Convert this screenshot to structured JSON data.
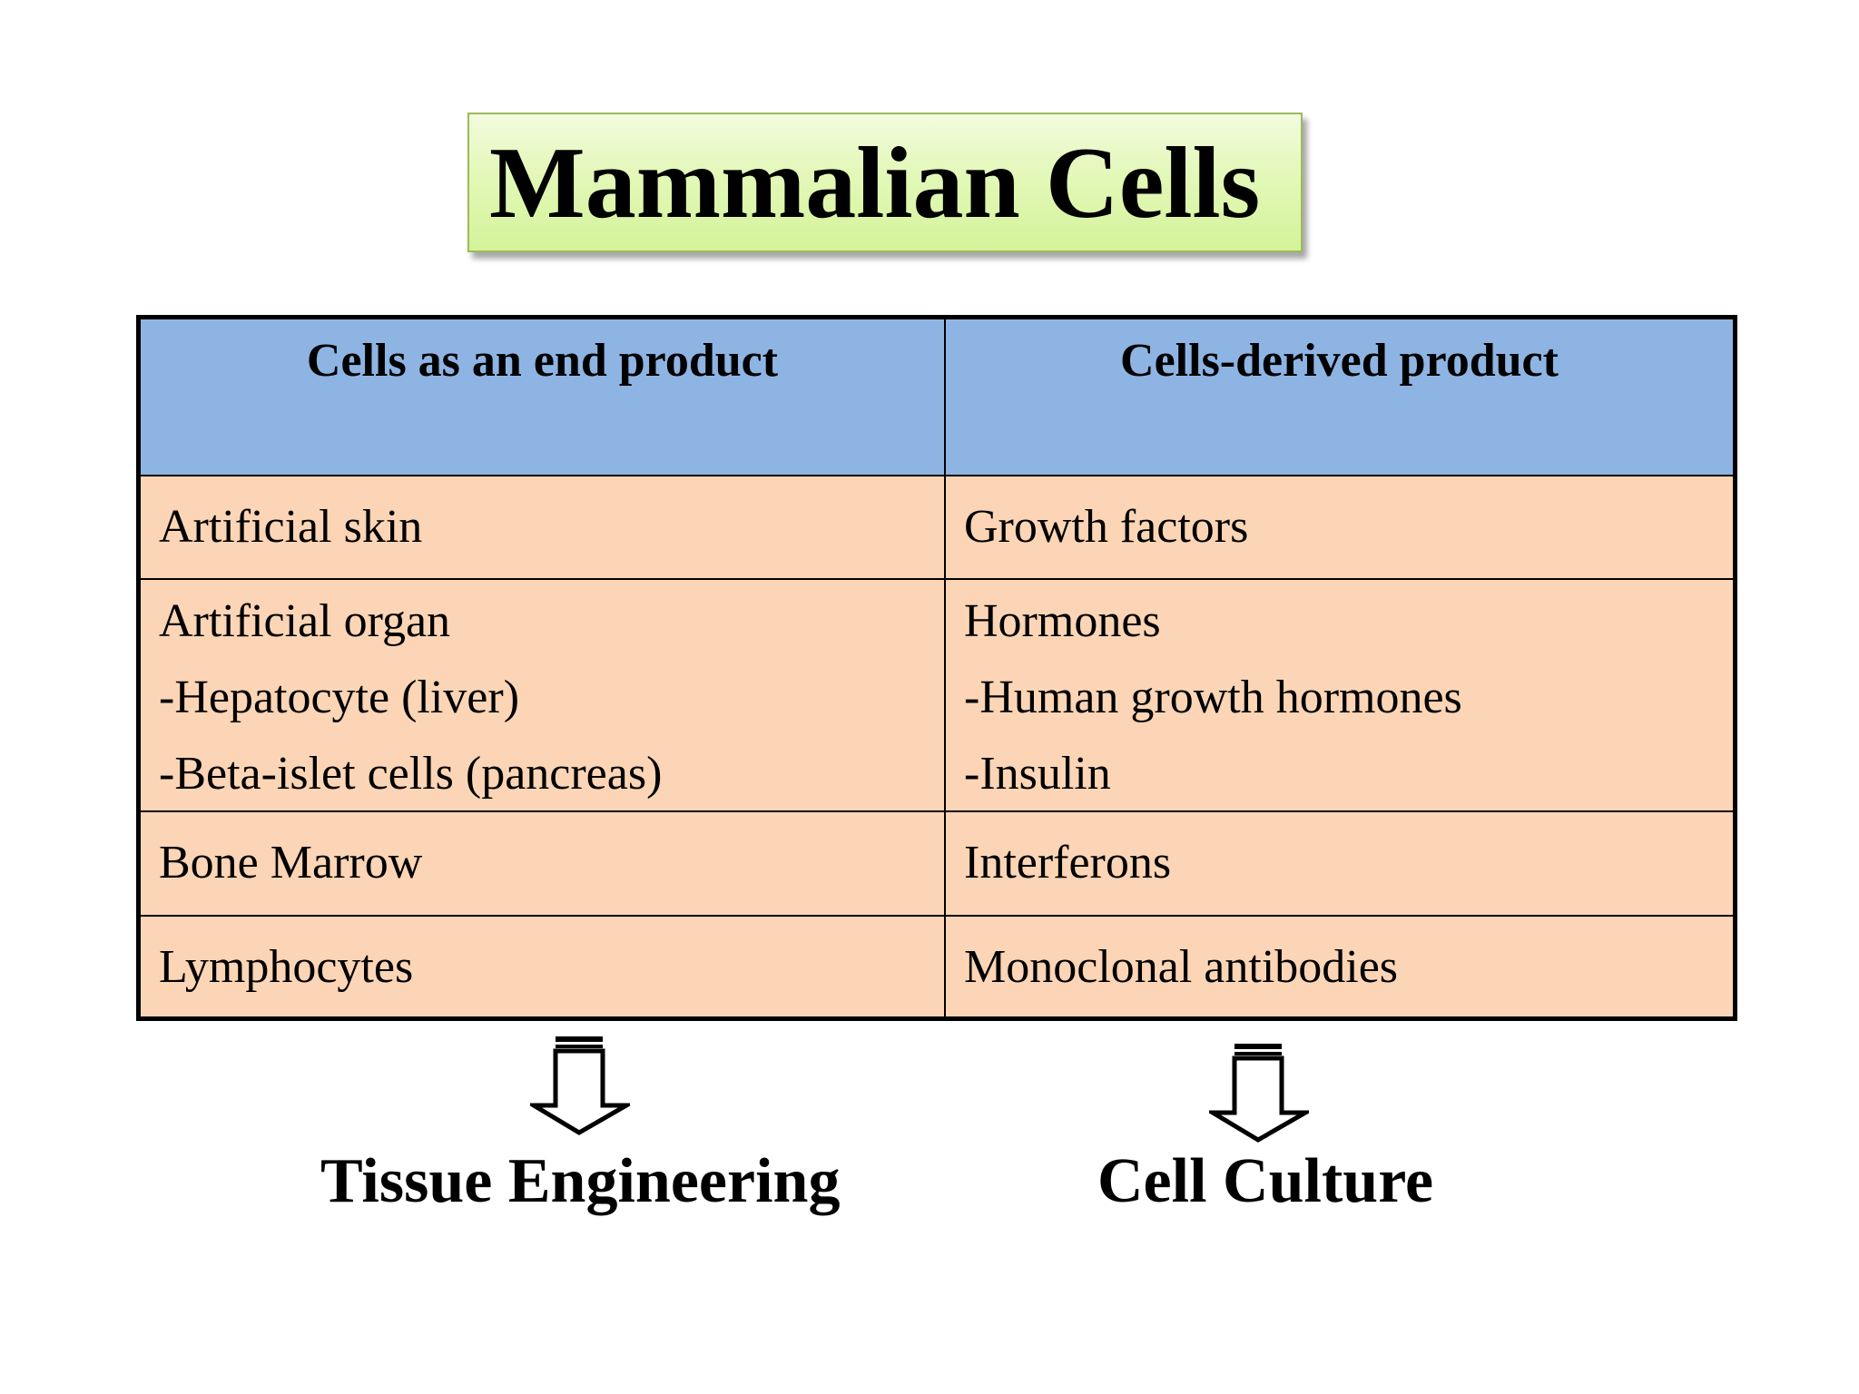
{
  "title": "Mammalian Cells",
  "table": {
    "headers": [
      "Cells as an end product",
      "Cells-derived product"
    ],
    "rows": [
      {
        "left": [
          "Artificial skin"
        ],
        "right": [
          "Growth factors"
        ]
      },
      {
        "left": [
          "Artificial organ",
          "-Hepatocyte (liver)",
          "-Beta-islet cells (pancreas)"
        ],
        "right": [
          "Hormones",
          "-Human growth hormones",
          "-Insulin"
        ]
      },
      {
        "left": [
          "Bone Marrow"
        ],
        "right": [
          "Interferons"
        ]
      },
      {
        "left": [
          "Lymphocytes"
        ],
        "right": [
          "Monoclonal antibodies"
        ]
      }
    ]
  },
  "footer": {
    "left_label": "Tissue Engineering",
    "right_label": "Cell Culture"
  },
  "colors": {
    "header_fill": "#8eb4e3",
    "cell_fill": "#fbd5b5",
    "title_fill": "#e3f8b8"
  }
}
